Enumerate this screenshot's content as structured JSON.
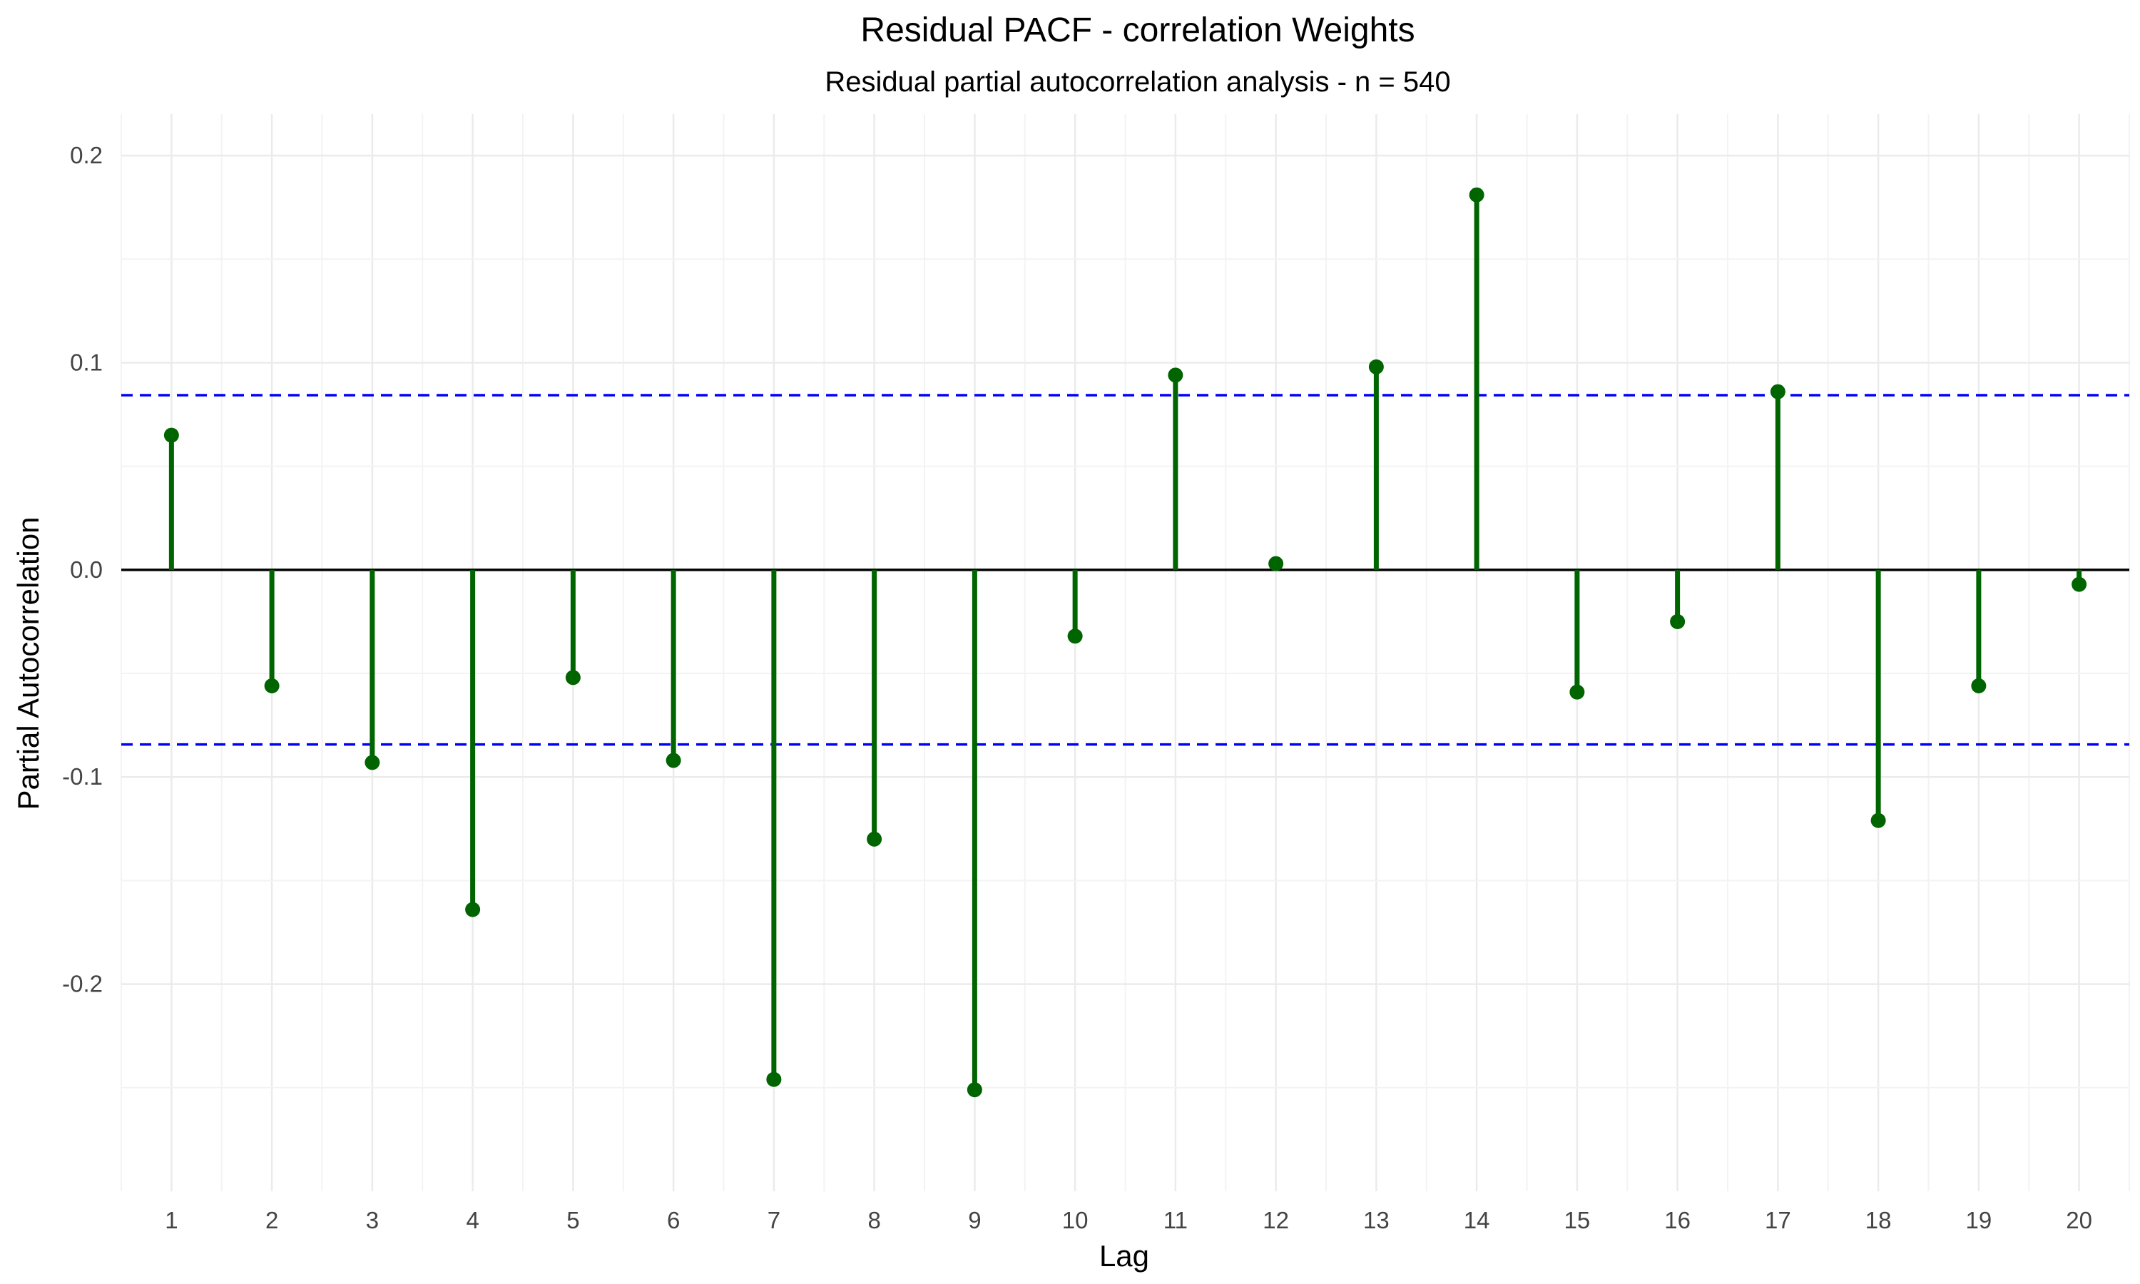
{
  "chart_data": {
    "type": "bar",
    "title": "Residual PACF - correlation Weights",
    "subtitle": "Residual partial autocorrelation analysis - n = 540",
    "xlabel": "Lag",
    "ylabel": "Partial Autocorrelation",
    "x": [
      1,
      2,
      3,
      4,
      5,
      6,
      7,
      8,
      9,
      10,
      11,
      12,
      13,
      14,
      15,
      16,
      17,
      18,
      19,
      20
    ],
    "values": [
      0.065,
      -0.056,
      -0.093,
      -0.164,
      -0.052,
      -0.092,
      -0.246,
      -0.13,
      -0.251,
      -0.032,
      0.094,
      0.003,
      0.098,
      0.181,
      -0.059,
      -0.025,
      0.086,
      -0.121,
      -0.056,
      -0.007
    ],
    "confidence_bound": 0.0843,
    "ylim": [
      -0.3,
      0.22
    ],
    "xlim": [
      0.5,
      20.5
    ],
    "y_ticks": [
      -0.2,
      -0.1,
      0.0,
      0.1,
      0.2
    ],
    "y_tick_labels": [
      "-0.2",
      "-0.1",
      "0.0",
      "0.1",
      "0.2"
    ],
    "grid": true,
    "legend": "none",
    "colors": {
      "stem": "#006400",
      "bound": "#0000ff",
      "zero_line": "#000000",
      "grid_major": "#ebebeb",
      "grid_minor": "#f3f3f3"
    }
  }
}
